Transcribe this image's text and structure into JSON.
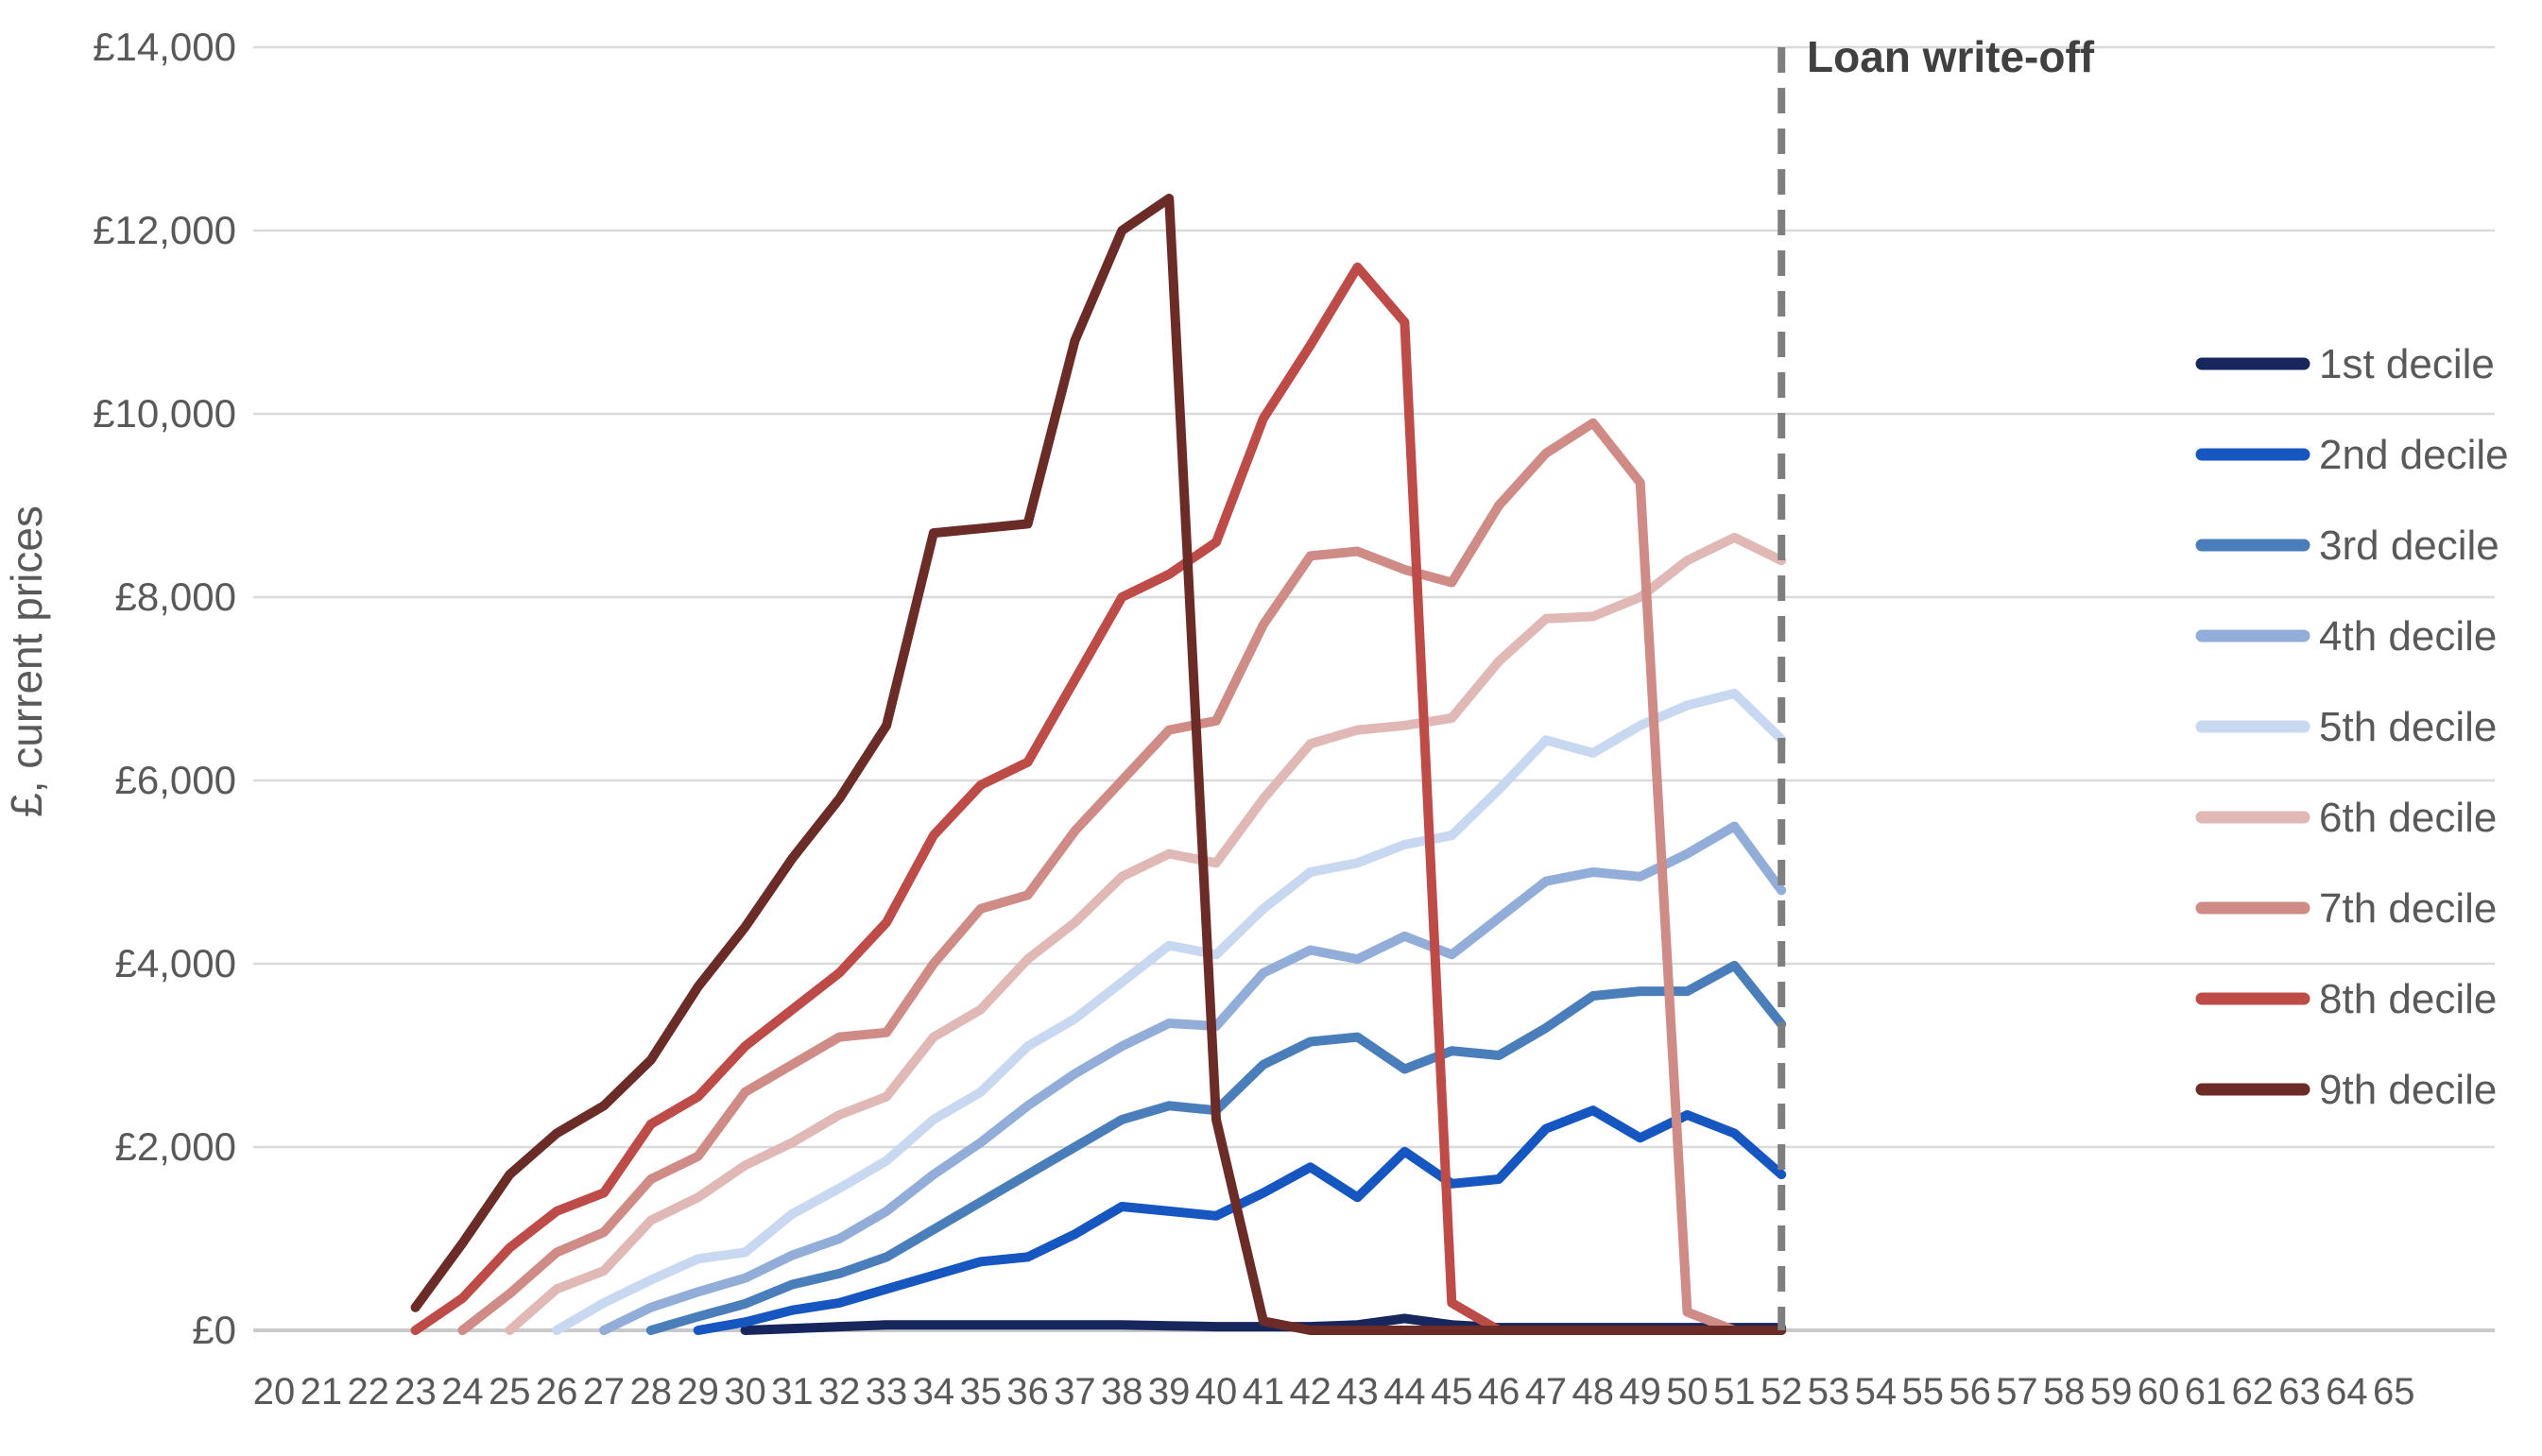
{
  "chart": {
    "annotation": "Loan write-off",
    "writeoff_age": 52,
    "colors": {
      "gridline": "#DADADA",
      "axis_text": "#595959",
      "annotation_text": "#404040",
      "writeoff_dash": "#7F7F7F"
    }
  },
  "chart_data": {
    "type": "line",
    "title": "",
    "xlabel": "",
    "ylabel": "£, current prices",
    "annotation": "Loan write-off",
    "grid": "horizontal",
    "legend_position": "right",
    "xlim": [
      20,
      65
    ],
    "ylim": [
      0,
      14000
    ],
    "y_tick_values": [
      0,
      2000,
      4000,
      6000,
      8000,
      10000,
      12000,
      14000
    ],
    "y_tick_labels": [
      "£0",
      "£2,000",
      "£4,000",
      "£6,000",
      "£8,000",
      "£10,000",
      "£12,000",
      "£14,000"
    ],
    "ages": [
      20,
      21,
      22,
      23,
      24,
      25,
      26,
      27,
      28,
      29,
      30,
      31,
      32,
      33,
      34,
      35,
      36,
      37,
      38,
      39,
      40,
      41,
      42,
      43,
      44,
      45,
      46,
      47,
      48,
      49,
      50,
      51,
      52,
      53,
      54,
      55,
      56,
      57,
      58,
      59,
      60,
      61,
      62,
      63,
      64,
      65
    ],
    "writeoff_age": 52,
    "series": [
      {
        "name": "1st decile",
        "color": "#17265C",
        "values": [
          null,
          null,
          null,
          null,
          null,
          null,
          null,
          null,
          null,
          null,
          0,
          20,
          40,
          60,
          60,
          60,
          60,
          60,
          60,
          50,
          40,
          40,
          40,
          60,
          130,
          60,
          30,
          30,
          30,
          30,
          30,
          30,
          30,
          null,
          null,
          null,
          null,
          null,
          null,
          null,
          null,
          null,
          null,
          null,
          null,
          null
        ]
      },
      {
        "name": "2nd decile",
        "color": "#1656C1",
        "values": [
          null,
          null,
          null,
          null,
          null,
          null,
          null,
          null,
          null,
          0,
          90,
          220,
          300,
          450,
          600,
          750,
          800,
          1050,
          1350,
          1300,
          1250,
          1500,
          1780,
          1450,
          1950,
          1600,
          1650,
          2200,
          2400,
          2100,
          2350,
          2150,
          1700,
          null,
          null,
          null,
          null,
          null,
          null,
          null,
          null,
          null,
          null,
          null,
          null,
          null
        ]
      },
      {
        "name": "3rd decile",
        "color": "#4A7EBB",
        "values": [
          null,
          null,
          null,
          null,
          null,
          null,
          null,
          null,
          0,
          150,
          290,
          500,
          620,
          800,
          1100,
          1400,
          1700,
          2000,
          2300,
          2450,
          2400,
          2900,
          3150,
          3200,
          2850,
          3050,
          3000,
          3300,
          3650,
          3700,
          3700,
          3980,
          3340,
          null,
          null,
          null,
          null,
          null,
          null,
          null,
          null,
          null,
          null,
          null,
          null,
          null
        ]
      },
      {
        "name": "4th decile",
        "color": "#92AED8",
        "values": [
          null,
          null,
          null,
          null,
          null,
          null,
          null,
          0,
          250,
          420,
          570,
          820,
          1000,
          1300,
          1700,
          2050,
          2450,
          2800,
          3100,
          3350,
          3320,
          3900,
          4150,
          4050,
          4300,
          4100,
          4500,
          4900,
          5000,
          4950,
          5200,
          5500,
          4800,
          null,
          null,
          null,
          null,
          null,
          null,
          null,
          null,
          null,
          null,
          null,
          null,
          null
        ]
      },
      {
        "name": "5th decile",
        "color": "#C7D8F0",
        "values": [
          null,
          null,
          null,
          null,
          null,
          null,
          0,
          300,
          550,
          780,
          850,
          1270,
          1550,
          1850,
          2300,
          2600,
          3100,
          3400,
          3800,
          4200,
          4100,
          4600,
          5000,
          5100,
          5300,
          5400,
          5900,
          6440,
          6300,
          6600,
          6820,
          6950,
          6450,
          null,
          null,
          null,
          null,
          null,
          null,
          null,
          null,
          null,
          null,
          null,
          null,
          null
        ]
      },
      {
        "name": "6th decile",
        "color": "#E0B9B6",
        "values": [
          null,
          null,
          null,
          null,
          null,
          0,
          450,
          650,
          1200,
          1450,
          1800,
          2050,
          2350,
          2550,
          3200,
          3500,
          4050,
          4450,
          4950,
          5200,
          5100,
          5800,
          6400,
          6550,
          6600,
          6680,
          7300,
          7765,
          7790,
          8000,
          8400,
          8650,
          8400,
          null,
          null,
          null,
          null,
          null,
          null,
          null,
          null,
          null,
          null,
          null,
          null,
          null
        ]
      },
      {
        "name": "7th decile",
        "color": "#CF8B86",
        "values": [
          null,
          null,
          null,
          null,
          0,
          400,
          850,
          1070,
          1650,
          1900,
          2600,
          2900,
          3200,
          3250,
          4000,
          4600,
          4750,
          5450,
          6000,
          6550,
          6650,
          7700,
          8450,
          8500,
          8300,
          8160,
          9000,
          9570,
          9900,
          9250,
          200,
          0,
          0,
          null,
          null,
          null,
          null,
          null,
          null,
          null,
          null,
          null,
          null,
          null,
          null,
          null
        ]
      },
      {
        "name": "8th decile",
        "color": "#BD4B47",
        "values": [
          null,
          null,
          null,
          0,
          350,
          900,
          1300,
          1500,
          2250,
          2550,
          3100,
          3500,
          3900,
          4450,
          5400,
          5950,
          6200,
          7100,
          8000,
          8250,
          8600,
          9950,
          10750,
          11600,
          11000,
          300,
          0,
          0,
          0,
          0,
          0,
          0,
          0,
          null,
          null,
          null,
          null,
          null,
          null,
          null,
          null,
          null,
          null,
          null,
          null,
          null
        ]
      },
      {
        "name": "9th decile",
        "color": "#6B2B26",
        "values": [
          null,
          null,
          null,
          250,
          950,
          1700,
          2150,
          2450,
          2950,
          3750,
          4400,
          5150,
          5800,
          6600,
          8700,
          8750,
          8800,
          10800,
          12000,
          12350,
          2300,
          100,
          0,
          0,
          0,
          0,
          0,
          0,
          0,
          0,
          0,
          0,
          0,
          null,
          null,
          null,
          null,
          null,
          null,
          null,
          null,
          null,
          null,
          null,
          null,
          null
        ]
      }
    ]
  }
}
